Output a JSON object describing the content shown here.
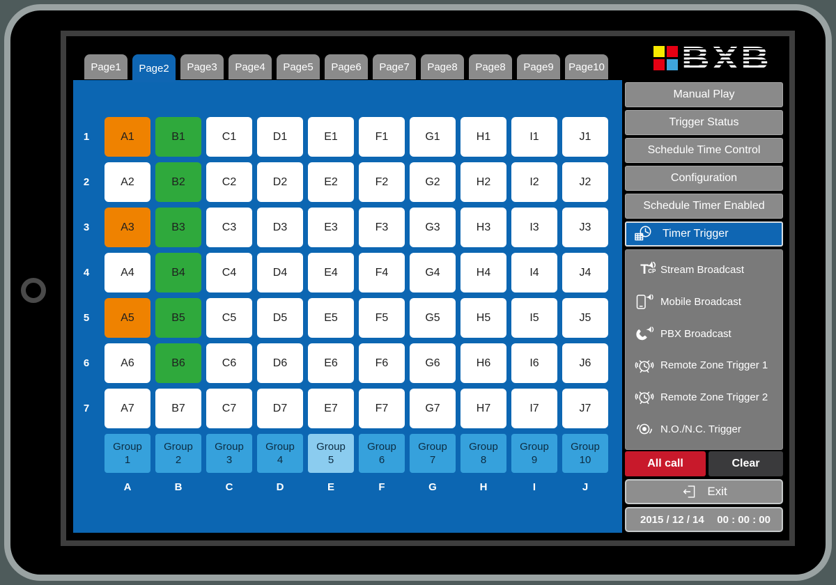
{
  "logo": {
    "text": "BXB",
    "squares": [
      "#f7e800",
      "#e60013",
      "#e60013",
      "#3fa5dc"
    ]
  },
  "tabs": {
    "items": [
      {
        "label": "Page1",
        "active": false
      },
      {
        "label": "Page2",
        "active": true
      },
      {
        "label": "Page3",
        "active": false
      },
      {
        "label": "Page4",
        "active": false
      },
      {
        "label": "Page5",
        "active": false
      },
      {
        "label": "Page6",
        "active": false
      },
      {
        "label": "Page7",
        "active": false
      },
      {
        "label": "Page8",
        "active": false
      },
      {
        "label": "Page8",
        "active": false
      },
      {
        "label": "Page9",
        "active": false
      },
      {
        "label": "Page10",
        "active": false
      }
    ]
  },
  "grid": {
    "row_numbers": [
      "1",
      "2",
      "3",
      "4",
      "5",
      "6",
      "7"
    ],
    "column_letters": [
      "A",
      "B",
      "C",
      "D",
      "E",
      "F",
      "G",
      "H",
      "I",
      "J"
    ],
    "rows": [
      [
        {
          "label": "A1",
          "state": "orange"
        },
        {
          "label": "B1",
          "state": "green"
        },
        {
          "label": "C1",
          "state": "white"
        },
        {
          "label": "D1",
          "state": "white"
        },
        {
          "label": "E1",
          "state": "white"
        },
        {
          "label": "F1",
          "state": "white"
        },
        {
          "label": "G1",
          "state": "white"
        },
        {
          "label": "H1",
          "state": "white"
        },
        {
          "label": "I1",
          "state": "white"
        },
        {
          "label": "J1",
          "state": "white"
        }
      ],
      [
        {
          "label": "A2",
          "state": "white"
        },
        {
          "label": "B2",
          "state": "green"
        },
        {
          "label": "C2",
          "state": "white"
        },
        {
          "label": "D2",
          "state": "white"
        },
        {
          "label": "E2",
          "state": "white"
        },
        {
          "label": "F2",
          "state": "white"
        },
        {
          "label": "G2",
          "state": "white"
        },
        {
          "label": "H2",
          "state": "white"
        },
        {
          "label": "I2",
          "state": "white"
        },
        {
          "label": "J2",
          "state": "white"
        }
      ],
      [
        {
          "label": "A3",
          "state": "orange"
        },
        {
          "label": "B3",
          "state": "green"
        },
        {
          "label": "C3",
          "state": "white"
        },
        {
          "label": "D3",
          "state": "white"
        },
        {
          "label": "E3",
          "state": "white"
        },
        {
          "label": "F3",
          "state": "white"
        },
        {
          "label": "G3",
          "state": "white"
        },
        {
          "label": "H3",
          "state": "white"
        },
        {
          "label": "I3",
          "state": "white"
        },
        {
          "label": "J3",
          "state": "white"
        }
      ],
      [
        {
          "label": "A4",
          "state": "white"
        },
        {
          "label": "B4",
          "state": "green"
        },
        {
          "label": "C4",
          "state": "white"
        },
        {
          "label": "D4",
          "state": "white"
        },
        {
          "label": "E4",
          "state": "white"
        },
        {
          "label": "F4",
          "state": "white"
        },
        {
          "label": "G4",
          "state": "white"
        },
        {
          "label": "H4",
          "state": "white"
        },
        {
          "label": "I4",
          "state": "white"
        },
        {
          "label": "J4",
          "state": "white"
        }
      ],
      [
        {
          "label": "A5",
          "state": "orange"
        },
        {
          "label": "B5",
          "state": "green"
        },
        {
          "label": "C5",
          "state": "white"
        },
        {
          "label": "D5",
          "state": "white"
        },
        {
          "label": "E5",
          "state": "white"
        },
        {
          "label": "F5",
          "state": "white"
        },
        {
          "label": "G5",
          "state": "white"
        },
        {
          "label": "H5",
          "state": "white"
        },
        {
          "label": "I5",
          "state": "white"
        },
        {
          "label": "J5",
          "state": "white"
        }
      ],
      [
        {
          "label": "A6",
          "state": "white"
        },
        {
          "label": "B6",
          "state": "green"
        },
        {
          "label": "C6",
          "state": "white"
        },
        {
          "label": "D6",
          "state": "white"
        },
        {
          "label": "E6",
          "state": "white"
        },
        {
          "label": "F6",
          "state": "white"
        },
        {
          "label": "G6",
          "state": "white"
        },
        {
          "label": "H6",
          "state": "white"
        },
        {
          "label": "I6",
          "state": "white"
        },
        {
          "label": "J6",
          "state": "white"
        }
      ],
      [
        {
          "label": "A7",
          "state": "white"
        },
        {
          "label": "B7",
          "state": "white"
        },
        {
          "label": "C7",
          "state": "white"
        },
        {
          "label": "D7",
          "state": "white"
        },
        {
          "label": "E7",
          "state": "white"
        },
        {
          "label": "F7",
          "state": "white"
        },
        {
          "label": "G7",
          "state": "white"
        },
        {
          "label": "H7",
          "state": "white"
        },
        {
          "label": "I7",
          "state": "white"
        },
        {
          "label": "J7",
          "state": "white"
        }
      ]
    ],
    "groups": [
      {
        "word": "Group",
        "number": "1",
        "selected": false
      },
      {
        "word": "Group",
        "number": "2",
        "selected": false
      },
      {
        "word": "Group",
        "number": "3",
        "selected": false
      },
      {
        "word": "Group",
        "number": "4",
        "selected": false
      },
      {
        "word": "Group",
        "number": "5",
        "selected": true
      },
      {
        "word": "Group",
        "number": "6",
        "selected": false
      },
      {
        "word": "Group",
        "number": "7",
        "selected": false
      },
      {
        "word": "Group",
        "number": "8",
        "selected": false
      },
      {
        "word": "Group",
        "number": "9",
        "selected": false
      },
      {
        "word": "Group",
        "number": "10",
        "selected": false
      }
    ]
  },
  "sidebar": {
    "menu_items": [
      {
        "label": "Manual Play",
        "active": false
      },
      {
        "label": "Trigger Status",
        "active": false
      },
      {
        "label": "Schedule Time Control",
        "active": false
      },
      {
        "label": "Configuration",
        "active": false
      },
      {
        "label": "Schedule Timer Enabled",
        "active": false
      },
      {
        "label": "Timer Trigger",
        "active": true,
        "icon": "timer-clock-icon"
      }
    ],
    "broadcast_items": [
      {
        "label": "Stream Broadcast",
        "icon": "stream-tcp-icon"
      },
      {
        "label": "Mobile Broadcast",
        "icon": "mobile-phone-icon"
      },
      {
        "label": "PBX Broadcast",
        "icon": "pbx-handset-icon"
      },
      {
        "label": "Remote Zone Trigger 1",
        "icon": "alarm-clock-icon"
      },
      {
        "label": "Remote Zone Trigger 2",
        "icon": "alarm-clock-icon"
      },
      {
        "label": "N.O./N.C. Trigger",
        "icon": "nonc-siren-icon"
      }
    ],
    "all_call_label": "All call",
    "clear_label": "Clear",
    "exit": {
      "label": "Exit",
      "icon": "exit-door-icon"
    },
    "datetime": {
      "date": "2015 / 12 / 14",
      "time": "00 : 00 : 00"
    }
  },
  "colors": {
    "panel_blue": "#0c66b2",
    "active_tab_blue": "#0f66b3",
    "cell_orange": "#ef8200",
    "cell_green": "#2fa93c",
    "group_blue": "#36a1dc",
    "group_selected_blue": "#8bccef",
    "all_call_red": "#c8192b",
    "clear_dark": "#3a3a3c",
    "tab_gray": "#8b8b8b",
    "button_gray": "#8a8a8a",
    "icon_panel_gray": "#7a7a7a"
  }
}
